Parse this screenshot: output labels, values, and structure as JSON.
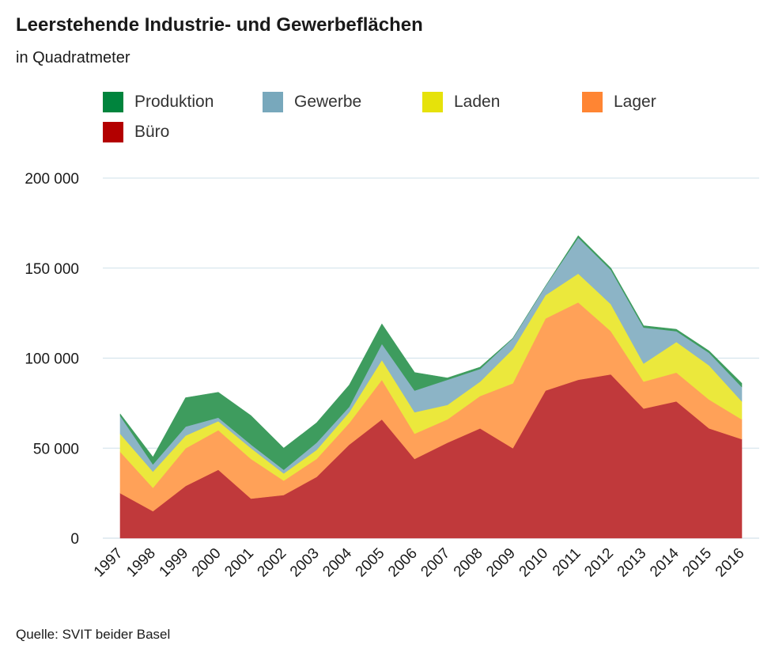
{
  "title": "Leerstehende Industrie- und Gewerbeflächen",
  "subtitle": "in Quadratmeter",
  "source": "Quelle: SVIT beider Basel",
  "chart_data": {
    "type": "area",
    "stacked": true,
    "title": "Leerstehende Industrie- und Gewerbeflächen",
    "subtitle": "in Quadratmeter",
    "xlabel": "",
    "ylabel": "",
    "ylim": [
      0,
      200000
    ],
    "yticks": [
      0,
      50000,
      100000,
      150000,
      200000
    ],
    "ytick_labels": [
      "0",
      "50 000",
      "100 000",
      "150 000",
      "200 000"
    ],
    "grid": "horizontal",
    "legend_position": "top",
    "categories": [
      "1997",
      "1998",
      "1999",
      "2000",
      "2001",
      "2002",
      "2003",
      "2004",
      "2005",
      "2006",
      "2007",
      "2008",
      "2009",
      "2010",
      "2011",
      "2012",
      "2013",
      "2014",
      "2015",
      "2016"
    ],
    "legend_order": [
      "Produktion",
      "Gewerbe",
      "Laden",
      "Lager",
      "Büro"
    ],
    "series": [
      {
        "name": "Büro",
        "color": "#c0393b",
        "values": [
          25000,
          15000,
          29000,
          38000,
          22000,
          24000,
          34000,
          52000,
          66000,
          44000,
          53000,
          61000,
          50000,
          82000,
          88000,
          91000,
          72000,
          76000,
          61000,
          55000
        ]
      },
      {
        "name": "Lager",
        "color": "#ffa158",
        "values": [
          23000,
          13000,
          21000,
          22000,
          22000,
          8000,
          10000,
          12000,
          22000,
          14000,
          13000,
          18000,
          36000,
          40000,
          43000,
          24000,
          15000,
          16000,
          16000,
          11000
        ]
      },
      {
        "name": "Laden",
        "color": "#ebe83c",
        "values": [
          10000,
          9000,
          7000,
          5000,
          6000,
          4000,
          5000,
          6000,
          11000,
          12000,
          8000,
          8000,
          19000,
          13000,
          16000,
          15000,
          10000,
          17000,
          19000,
          10000
        ]
      },
      {
        "name": "Gewerbe",
        "color": "#8cb4c6",
        "values": [
          10000,
          4000,
          5000,
          2000,
          2000,
          2000,
          4000,
          3000,
          9000,
          12000,
          14000,
          7000,
          6000,
          5000,
          20000,
          19000,
          20000,
          6000,
          7000,
          8000
        ]
      },
      {
        "name": "Produktion",
        "color": "#3e9c5e",
        "values": [
          1000,
          4000,
          16000,
          14000,
          16000,
          12000,
          11000,
          12000,
          11000,
          10000,
          1000,
          1000,
          0,
          0,
          1000,
          1000,
          1000,
          1000,
          1000,
          2000
        ]
      }
    ]
  }
}
